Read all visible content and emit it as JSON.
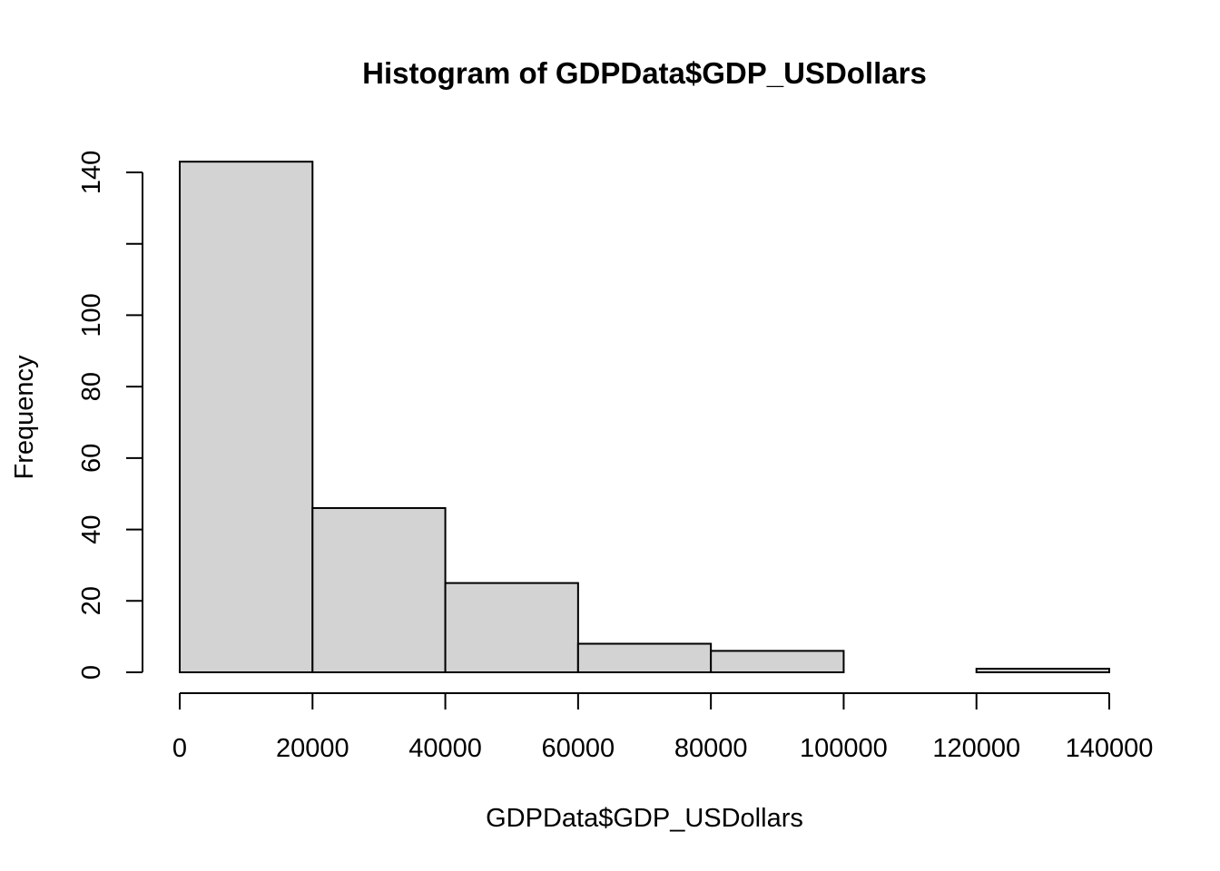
{
  "chart_data": {
    "type": "bar",
    "title": "Histogram of GDPData$GDP_USDollars",
    "xlabel": "GDPData$GDP_USDollars",
    "ylabel": "Frequency",
    "bins": [
      {
        "from": 0,
        "to": 20000,
        "count": 143
      },
      {
        "from": 20000,
        "to": 40000,
        "count": 46
      },
      {
        "from": 40000,
        "to": 60000,
        "count": 25
      },
      {
        "from": 60000,
        "to": 80000,
        "count": 8
      },
      {
        "from": 80000,
        "to": 100000,
        "count": 6
      },
      {
        "from": 100000,
        "to": 120000,
        "count": 0
      },
      {
        "from": 120000,
        "to": 140000,
        "count": 1
      }
    ],
    "xlim": [
      0,
      140000
    ],
    "ylim": [
      0,
      140
    ],
    "x_ticks": [
      0,
      20000,
      40000,
      60000,
      80000,
      100000,
      120000,
      140000
    ],
    "y_ticks": [
      0,
      20,
      40,
      60,
      80,
      100,
      120,
      140
    ],
    "y_tick_labels": [
      "0",
      "20",
      "40",
      "60",
      "80",
      "100",
      "",
      "140"
    ],
    "fill_color": "#d3d3d3",
    "border_color": "#000000",
    "grid": false,
    "legend": "none"
  }
}
